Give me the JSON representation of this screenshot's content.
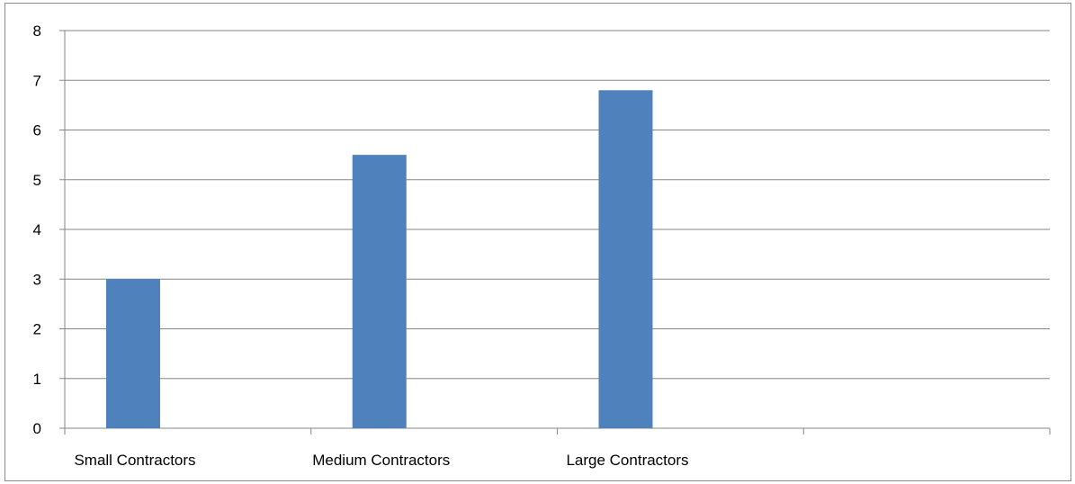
{
  "chart_data": {
    "type": "bar",
    "categories": [
      "Small Contractors",
      "Medium Contractors",
      "Large Contractors",
      ""
    ],
    "series": [
      {
        "values": [
          3,
          5.5,
          6.8,
          null
        ]
      }
    ],
    "ylim": [
      0,
      8
    ],
    "yticks": [
      "0",
      "1",
      "2",
      "3",
      "4",
      "5",
      "6",
      "7",
      "8"
    ],
    "grid": true,
    "legend": "none",
    "colors": {
      "bar": "#4f81bd",
      "grid": "#868686",
      "axis": "#868686",
      "frame": "#8c8c8c"
    }
  }
}
